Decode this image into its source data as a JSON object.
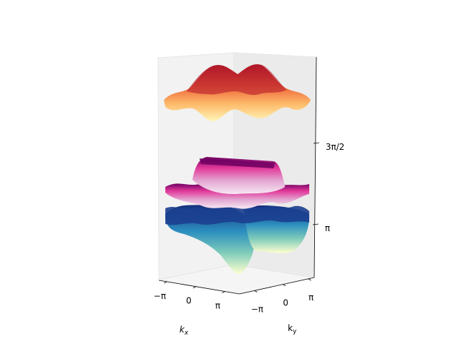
{
  "chart_data": {
    "type": "surface3d",
    "title": "",
    "axes": {
      "x": {
        "label": "k_x",
        "ticks": [
          "−π",
          "0",
          "π"
        ]
      },
      "y": {
        "label": "k_y",
        "ticks": [
          "−π",
          "0",
          "π"
        ]
      },
      "z": {
        "label": "",
        "ticks": [
          "π",
          "3π/2"
        ]
      }
    },
    "grid": false,
    "series": [
      {
        "colormap": "Spectral",
        "description": "upper band"
      },
      {
        "colormap": "RdPu",
        "description": "middle band"
      },
      {
        "colormap": "YlGnBu",
        "description": "lower band"
      }
    ]
  }
}
